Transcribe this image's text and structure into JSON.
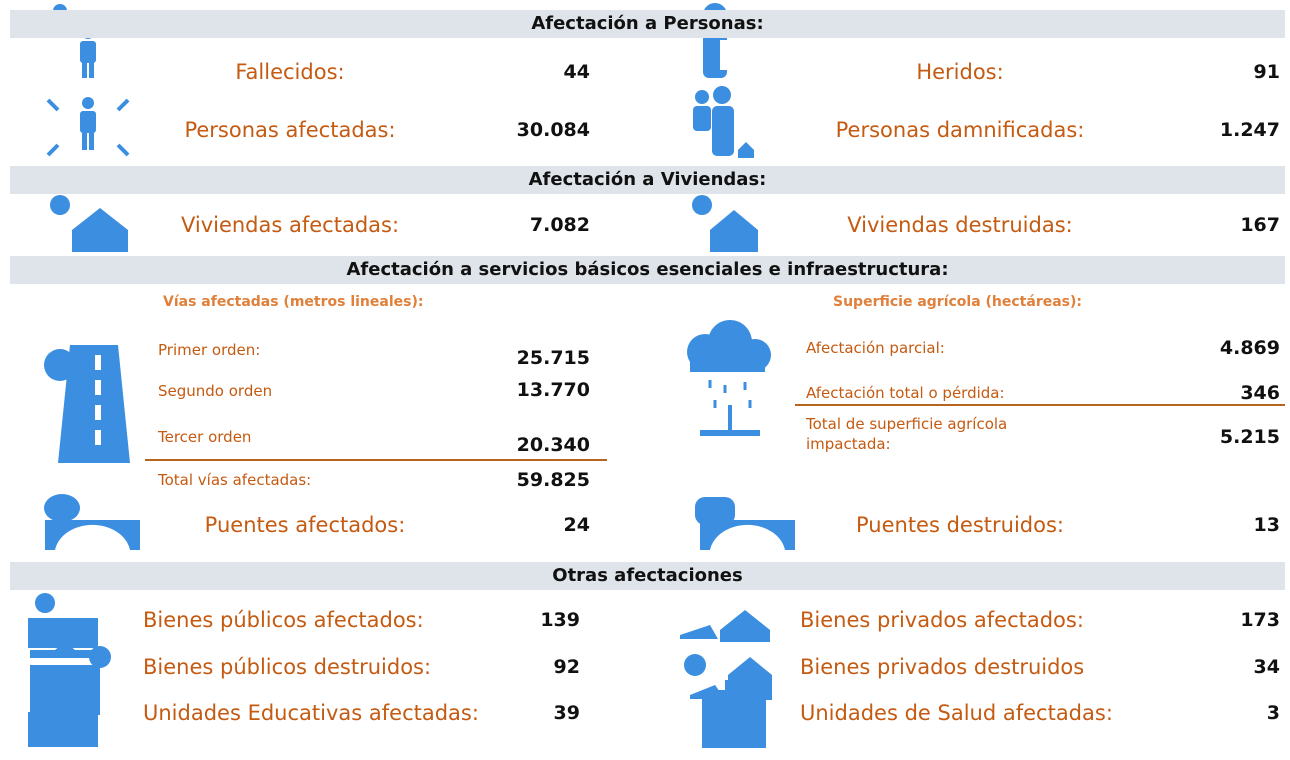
{
  "personas": {
    "title": "Afectación a Personas:",
    "items": [
      {
        "label": "Fallecidos:",
        "value": "44"
      },
      {
        "label": "Heridos:",
        "value": "91"
      },
      {
        "label": "Personas afectadas:",
        "value": "30.084"
      },
      {
        "label": "Personas damnificadas:",
        "value": "1.247"
      }
    ]
  },
  "viviendas": {
    "title": "Afectación a Viviendas:",
    "items": [
      {
        "label": "Viviendas afectadas:",
        "value": "7.082"
      },
      {
        "label": "Viviendas destruidas:",
        "value": "167"
      }
    ]
  },
  "servicios": {
    "title": "Afectación a servicios básicos esenciales e infraestructura:",
    "vias": {
      "title": "Vías afectadas (metros lineales):",
      "rows": [
        {
          "label": "Primer orden:",
          "value": "25.715"
        },
        {
          "label": "Segundo orden",
          "value": "13.770"
        },
        {
          "label": "Tercer orden",
          "value": "20.340"
        }
      ],
      "total": {
        "label": "Total vías afectadas:",
        "value": "59.825"
      }
    },
    "superficie": {
      "title": "Superficie agrícola (hectáreas):",
      "rows": [
        {
          "label": "Afectación parcial:",
          "value": "4.869"
        },
        {
          "label": "Afectación total o pérdida:",
          "value": "346"
        }
      ],
      "total": {
        "label": "Total de superficie agrícola impactada:",
        "value": "5.215"
      }
    },
    "puentes": [
      {
        "label": "Puentes afectados:",
        "value": "24"
      },
      {
        "label": "Puentes destruidos:",
        "value": "13"
      }
    ]
  },
  "otras": {
    "title": "Otras afectaciones",
    "items": [
      {
        "label": "Bienes públicos afectados:",
        "value": "139"
      },
      {
        "label": "Bienes privados afectados:",
        "value": "173"
      },
      {
        "label": "Bienes públicos destruidos:",
        "value": "92"
      },
      {
        "label": "Bienes privados destruidos",
        "value": "34"
      },
      {
        "label": "Unidades Educativas afectadas:",
        "value": "39"
      },
      {
        "label": "Unidades de Salud afectadas:",
        "value": "3"
      }
    ]
  }
}
